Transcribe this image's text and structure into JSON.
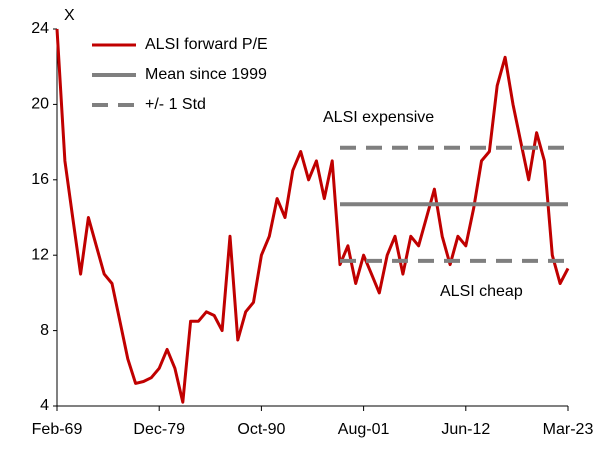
{
  "chart_data": {
    "type": "line",
    "ylabel": "X",
    "categories": [
      "Feb-69",
      null,
      null,
      null,
      null,
      null,
      null,
      null,
      null,
      null,
      null,
      null,
      null,
      "Dec-79",
      null,
      null,
      null,
      null,
      null,
      null,
      null,
      null,
      null,
      null,
      null,
      null,
      "Oct-90",
      null,
      null,
      null,
      null,
      null,
      null,
      null,
      null,
      null,
      null,
      null,
      null,
      "Aug-01",
      null,
      null,
      null,
      null,
      null,
      null,
      null,
      null,
      null,
      null,
      null,
      null,
      "Jun-12",
      null,
      null,
      null,
      null,
      null,
      null,
      null,
      null,
      null,
      null,
      null,
      null,
      "Mar-23"
    ],
    "series": [
      {
        "name": "ALSI forward P/E",
        "color": "#c00000",
        "style": "solid",
        "values": [
          24,
          17,
          14,
          11,
          14,
          12.5,
          11,
          10.5,
          8.5,
          6.5,
          5.2,
          5.3,
          5.5,
          6,
          7,
          6,
          4.2,
          8.5,
          8.5,
          9,
          8.8,
          8,
          13,
          7.5,
          9,
          9.5,
          12,
          13,
          15,
          14,
          16.5,
          17.5,
          16,
          17,
          15,
          17,
          11.5,
          12.5,
          10.5,
          12,
          11,
          10,
          12,
          13,
          11,
          13,
          12.5,
          14,
          15.5,
          13,
          11.5,
          13,
          12.5,
          14.5,
          17,
          17.5,
          21,
          22.5,
          20,
          18,
          16,
          18.5,
          17,
          12,
          10.5,
          11.3
        ]
      },
      {
        "name": "Mean since 1999",
        "color": "#7f7f7f",
        "style": "solid",
        "values": [
          null,
          null,
          null,
          null,
          null,
          null,
          null,
          null,
          null,
          null,
          null,
          null,
          null,
          null,
          null,
          null,
          null,
          null,
          null,
          null,
          null,
          null,
          null,
          null,
          null,
          null,
          null,
          null,
          null,
          null,
          null,
          null,
          null,
          null,
          null,
          null,
          14.7,
          14.7,
          14.7,
          14.7,
          14.7,
          14.7,
          14.7,
          14.7,
          14.7,
          14.7,
          14.7,
          14.7,
          14.7,
          14.7,
          14.7,
          14.7,
          14.7,
          14.7,
          14.7,
          14.7,
          14.7,
          14.7,
          14.7,
          14.7,
          14.7,
          14.7,
          14.7,
          14.7,
          14.7,
          14.7
        ]
      },
      {
        "name": "+/- 1 Std",
        "color": "#7f7f7f",
        "style": "dashed",
        "values": [
          null,
          null,
          null,
          null,
          null,
          null,
          null,
          null,
          null,
          null,
          null,
          null,
          null,
          null,
          null,
          null,
          null,
          null,
          null,
          null,
          null,
          null,
          null,
          null,
          null,
          null,
          null,
          null,
          null,
          null,
          null,
          null,
          null,
          null,
          null,
          null,
          17.7,
          17.7,
          17.7,
          17.7,
          17.7,
          17.7,
          17.7,
          17.7,
          17.7,
          17.7,
          17.7,
          17.7,
          17.7,
          17.7,
          17.7,
          17.7,
          17.7,
          17.7,
          17.7,
          17.7,
          17.7,
          17.7,
          17.7,
          17.7,
          17.7,
          17.7,
          17.7,
          17.7,
          17.7,
          17.7
        ],
        "lower": [
          null,
          null,
          null,
          null,
          null,
          null,
          null,
          null,
          null,
          null,
          null,
          null,
          null,
          null,
          null,
          null,
          null,
          null,
          null,
          null,
          null,
          null,
          null,
          null,
          null,
          null,
          null,
          null,
          null,
          null,
          null,
          null,
          null,
          null,
          null,
          null,
          11.7,
          11.7,
          11.7,
          11.7,
          11.7,
          11.7,
          11.7,
          11.7,
          11.7,
          11.7,
          11.7,
          11.7,
          11.7,
          11.7,
          11.7,
          11.7,
          11.7,
          11.7,
          11.7,
          11.7,
          11.7,
          11.7,
          11.7,
          11.7,
          11.7,
          11.7,
          11.7,
          11.7,
          11.7,
          11.7
        ]
      }
    ],
    "annotations": [
      "ALSI expensive",
      "ALSI cheap"
    ],
    "ylim": [
      4,
      24
    ],
    "yticks": [
      4,
      8,
      12,
      16,
      20,
      24
    ],
    "legend": "top-left"
  }
}
